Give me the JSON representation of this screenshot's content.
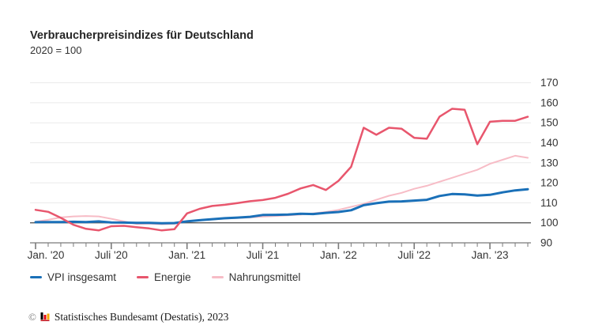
{
  "header": {
    "title": "Verbraucherpreisindizes für Deutschland",
    "subtitle": "2020 = 100"
  },
  "chart_data": {
    "type": "line",
    "title": "Verbraucherpreisindizes für Deutschland",
    "subtitle": "2020 = 100",
    "x_unit": "month",
    "x_range": "Jan 2020 – Apr 2023",
    "x_tick_labels": [
      {
        "label": "Jan. '20",
        "month_index": 0
      },
      {
        "label": "Juli '20",
        "month_index": 6
      },
      {
        "label": "Jan. '21",
        "month_index": 12
      },
      {
        "label": "Juli '21",
        "month_index": 18
      },
      {
        "label": "Jan. '22",
        "month_index": 24
      },
      {
        "label": "Juli '22",
        "month_index": 30
      },
      {
        "label": "Jan. '23",
        "month_index": 36
      }
    ],
    "months_total": 40,
    "ylim": [
      90,
      172
    ],
    "yticks": [
      90,
      100,
      110,
      120,
      130,
      140,
      150,
      160,
      170
    ],
    "grid": "horizontal",
    "baseline_value": 100,
    "legend_position": "bottom",
    "draw_order": [
      2,
      0,
      1
    ],
    "series": [
      {
        "name": "VPI insgesamt",
        "color": "#1a70b8",
        "width": 3,
        "values": [
          100.3,
          100.4,
          100.4,
          100.5,
          100.4,
          100.7,
          100.2,
          100.1,
          100.0,
          100.0,
          99.8,
          99.9,
          100.7,
          101.3,
          101.8,
          102.3,
          102.6,
          103.0,
          103.9,
          104.0,
          104.1,
          104.5,
          104.4,
          105.0,
          105.4,
          106.3,
          108.8,
          109.8,
          110.6,
          110.7,
          111.1,
          111.5,
          113.4,
          114.4,
          114.2,
          113.6,
          114.0,
          115.2,
          116.2,
          116.8
        ]
      },
      {
        "name": "Energie",
        "color": "#e8566d",
        "width": 2.5,
        "values": [
          106.5,
          105.5,
          102.5,
          99.0,
          97.0,
          96.2,
          98.3,
          98.5,
          97.8,
          97.2,
          96.2,
          96.8,
          104.7,
          107.0,
          108.4,
          109.0,
          109.9,
          110.8,
          111.4,
          112.5,
          114.5,
          117.2,
          118.9,
          116.4,
          121.0,
          128.0,
          147.5,
          144.0,
          147.5,
          147.0,
          142.5,
          142.0,
          153.0,
          157.0,
          156.5,
          139.3,
          150.5,
          151.0,
          151.0,
          153.0
        ]
      },
      {
        "name": "Nahrungsmittel",
        "color": "#f7bcc6",
        "width": 2,
        "values": [
          100.5,
          101.5,
          102.7,
          103.2,
          103.4,
          103.2,
          102.0,
          100.7,
          99.4,
          99.6,
          99.3,
          99.5,
          100.8,
          101.3,
          101.7,
          102.1,
          102.4,
          102.7,
          103.1,
          103.4,
          103.7,
          104.1,
          104.7,
          105.4,
          106.5,
          108.0,
          109.5,
          111.5,
          113.5,
          115.0,
          117.0,
          118.5,
          120.5,
          122.5,
          124.5,
          126.5,
          129.5,
          131.5,
          133.5,
          132.5
        ]
      }
    ],
    "colors": {
      "gridline": "#eaeaea",
      "baseline": "#595959",
      "axis": "#7a7a7a",
      "tick_label": "#333333"
    }
  },
  "footer": {
    "copyright_symbol": "©",
    "source": "Statistisches Bundesamt (Destatis), 2023",
    "logo_colors": {
      "black": "#000000",
      "red": "#e30613",
      "gold": "#f5a800",
      "baseline": "#c00a12"
    }
  }
}
